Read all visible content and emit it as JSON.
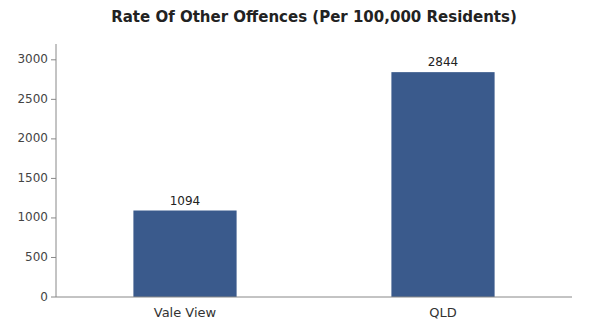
{
  "chart_data": {
    "type": "bar",
    "title": "Rate Of Other Offences (Per 100,000 Residents)",
    "categories": [
      "Vale View",
      "QLD"
    ],
    "values": [
      1094,
      2844
    ],
    "color": "#3a5a8c",
    "ylim": [
      0,
      3200
    ],
    "yticks": [
      0,
      500,
      1000,
      1500,
      2000,
      2500,
      3000
    ],
    "grid": false,
    "data_labels": true
  }
}
